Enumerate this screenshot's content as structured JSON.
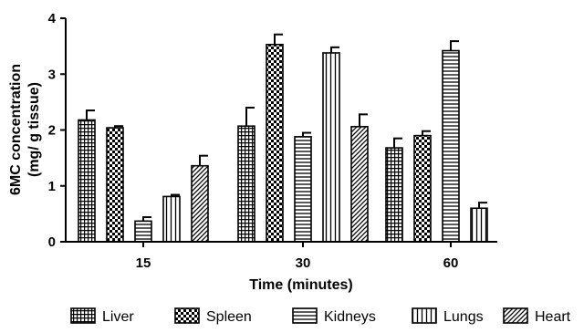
{
  "chart_data": {
    "type": "bar",
    "title": "",
    "xlabel": "Time (minutes)",
    "ylabel_line1": "6MC concentration",
    "ylabel_line2": "(mg/ g tissue)",
    "categories": [
      "15",
      "30",
      "60"
    ],
    "ylim": [
      0,
      4
    ],
    "yticks": [
      "0",
      "1",
      "2",
      "3",
      "4"
    ],
    "grid": false,
    "legend_position": "bottom",
    "series": [
      {
        "name": "Liver",
        "pattern": "grid-fine",
        "values": [
          2.18,
          2.07,
          1.68
        ],
        "errors": [
          0.17,
          0.33,
          0.17
        ]
      },
      {
        "name": "Spleen",
        "pattern": "checker",
        "values": [
          2.04,
          3.53,
          1.9
        ],
        "errors": [
          0.03,
          0.18,
          0.08
        ]
      },
      {
        "name": "Kidneys",
        "pattern": "horizontal",
        "values": [
          0.37,
          1.88,
          3.42
        ],
        "errors": [
          0.07,
          0.07,
          0.17
        ]
      },
      {
        "name": "Lungs",
        "pattern": "vertical",
        "values": [
          0.81,
          3.38,
          0.6
        ],
        "errors": [
          0.03,
          0.1,
          0.1
        ]
      },
      {
        "name": "Heart",
        "pattern": "diagonal",
        "values": [
          1.36,
          2.06,
          null
        ],
        "errors": [
          0.18,
          0.22,
          null
        ]
      }
    ]
  }
}
